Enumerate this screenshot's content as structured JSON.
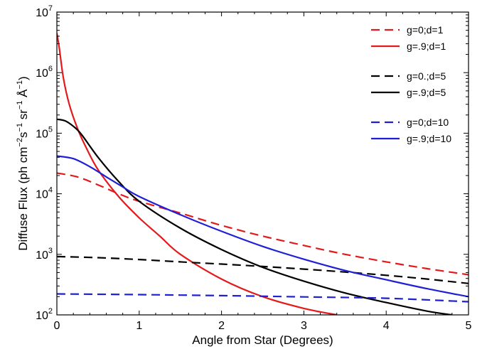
{
  "chart_data": {
    "type": "line",
    "title": "",
    "xlabel": "Angle from Star (Degrees)",
    "ylabel": {
      "prefix": "Diffuse Flux (ph cm",
      "e1": "−2",
      "s1": "s",
      "e2": "−1",
      "s2": " sr",
      "e3": "−1",
      "s3": " Å",
      "e4": "−1",
      "suffix": ")"
    },
    "xlim": [
      0,
      5
    ],
    "ylim": [
      100,
      10000000
    ],
    "yscale": "log",
    "grid": false,
    "legend_position": "top-right",
    "xticks": [
      "0",
      "1",
      "2",
      "3",
      "4",
      "5"
    ],
    "yticks": [
      {
        "value": 100,
        "base": "10",
        "exp": "2"
      },
      {
        "value": 1000,
        "base": "10",
        "exp": "3"
      },
      {
        "value": 10000,
        "base": "10",
        "exp": "4"
      },
      {
        "value": 100000,
        "base": "10",
        "exp": "5"
      },
      {
        "value": 1000000,
        "base": "10",
        "exp": "6"
      },
      {
        "value": 10000000,
        "base": "10",
        "exp": "7"
      }
    ],
    "series": [
      {
        "name": "g=0;d=1",
        "color": "#e31a1c",
        "dash": true,
        "x": [
          0,
          0.25,
          0.5,
          0.75,
          1,
          1.5,
          2,
          2.5,
          3,
          3.5,
          4,
          4.5,
          5
        ],
        "y": [
          22000,
          19000,
          14000,
          10000,
          7500,
          4800,
          3000,
          2000,
          1400,
          1000,
          750,
          580,
          460
        ]
      },
      {
        "name": "g=.9;d=1",
        "color": "#e31a1c",
        "dash": false,
        "x": [
          0,
          0.03,
          0.08,
          0.15,
          0.25,
          0.35,
          0.5,
          0.75,
          1,
          1.25,
          1.5,
          2,
          2.5,
          3,
          3.4
        ],
        "y": [
          4500000,
          2500000,
          800000,
          300000,
          120000,
          60000,
          25000,
          9000,
          4000,
          2000,
          1000,
          390,
          200,
          128,
          100
        ]
      },
      {
        "name": "g=0.;d=5",
        "color": "#000000",
        "dash": true,
        "x": [
          0,
          0.5,
          1,
          1.5,
          2,
          2.5,
          3,
          3.5,
          4,
          4.5,
          5
        ],
        "y": [
          920,
          880,
          820,
          750,
          690,
          630,
          570,
          510,
          450,
          390,
          330
        ]
      },
      {
        "name": "g=.9;d=5",
        "color": "#000000",
        "dash": false,
        "x": [
          0,
          0.1,
          0.2,
          0.3,
          0.5,
          0.75,
          1,
          1.5,
          2,
          2.5,
          3,
          3.5,
          4,
          4.5,
          4.8
        ],
        "y": [
          170000,
          160000,
          130000,
          95000,
          40000,
          16000,
          7500,
          2700,
          1200,
          610,
          360,
          230,
          160,
          115,
          100
        ]
      },
      {
        "name": "g=0;d=10",
        "color": "#1f1fd6",
        "dash": true,
        "x": [
          0,
          1,
          2,
          3,
          4,
          5
        ],
        "y": [
          222,
          216,
          208,
          198,
          188,
          165
        ]
      },
      {
        "name": "g=.9;d=10",
        "color": "#1f1fd6",
        "dash": false,
        "x": [
          0,
          0.2,
          0.4,
          0.6,
          0.8,
          1,
          1.5,
          2,
          2.5,
          3,
          3.5,
          4,
          4.5,
          5
        ],
        "y": [
          42000,
          38000,
          28000,
          19000,
          13000,
          9000,
          4500,
          2400,
          1350,
          830,
          540,
          380,
          270,
          200
        ]
      }
    ],
    "legend_groups": [
      [
        0,
        1
      ],
      [
        2,
        3
      ],
      [
        4,
        5
      ]
    ]
  }
}
